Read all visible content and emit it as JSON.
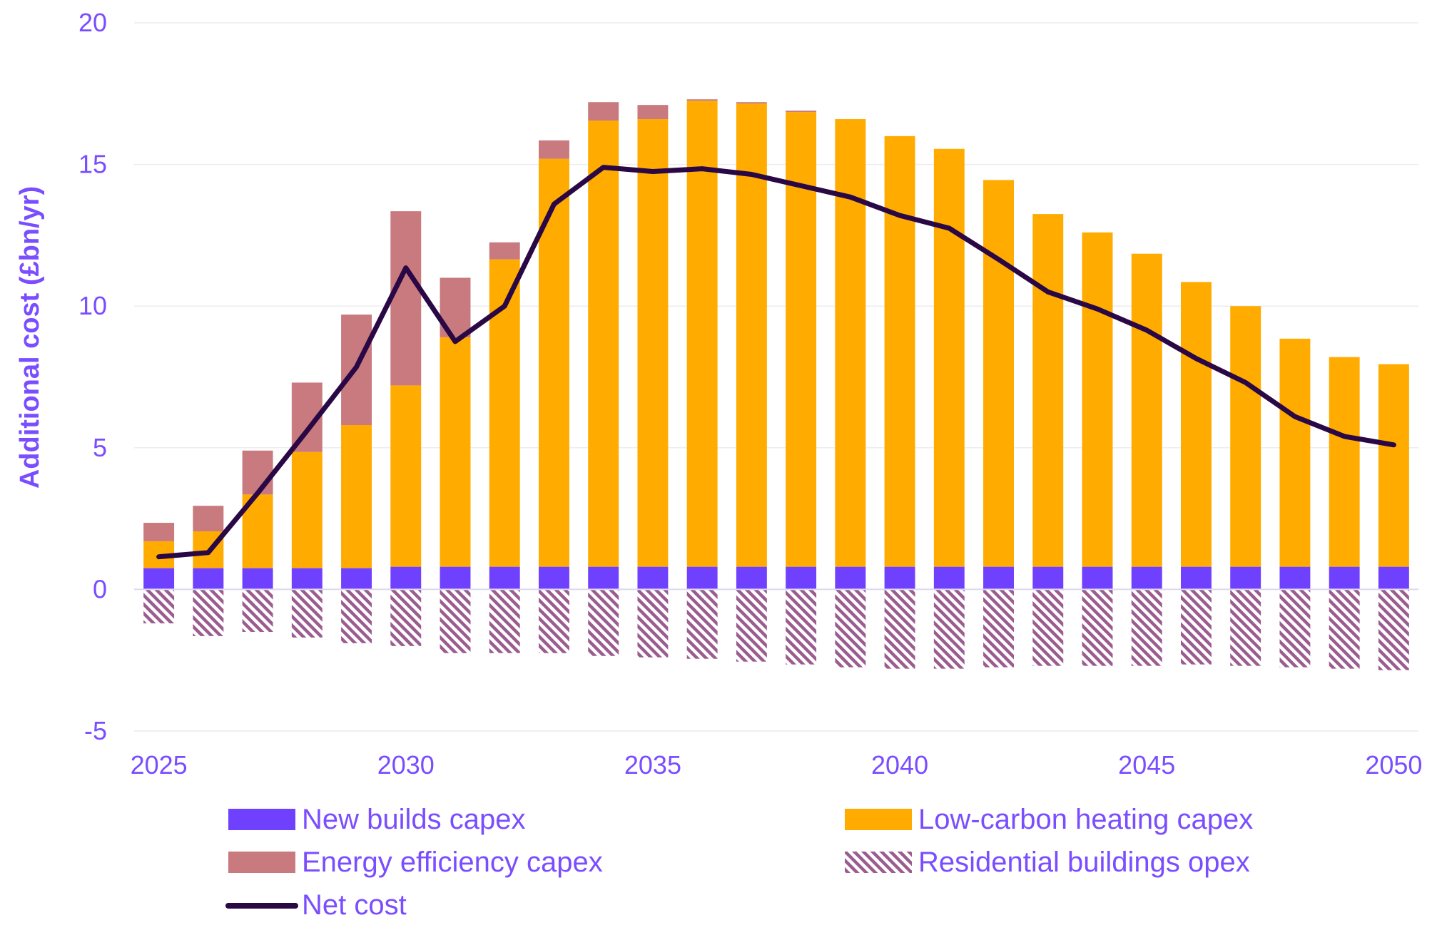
{
  "chart_data": {
    "type": "bar",
    "stacked": true,
    "ylabel": "Additional cost (£bn/yr)",
    "xlabel": "",
    "ylim": [
      -5,
      20
    ],
    "yticks": [
      20,
      15,
      10,
      5,
      0,
      -5
    ],
    "xtick_labels": [
      "2025",
      "2030",
      "2035",
      "2040",
      "2045",
      "2050"
    ],
    "grid": "horizontal",
    "legend_position": "bottom",
    "categories": [
      2025,
      2026,
      2027,
      2028,
      2029,
      2030,
      2031,
      2032,
      2033,
      2034,
      2035,
      2036,
      2037,
      2038,
      2039,
      2040,
      2041,
      2042,
      2043,
      2044,
      2045,
      2046,
      2047,
      2048,
      2049,
      2050
    ],
    "series": [
      {
        "name": "New builds capex",
        "kind": "bar",
        "color": "#7040ff",
        "values": [
          0.75,
          0.75,
          0.75,
          0.75,
          0.75,
          0.8,
          0.8,
          0.8,
          0.8,
          0.8,
          0.8,
          0.8,
          0.8,
          0.8,
          0.8,
          0.8,
          0.8,
          0.8,
          0.8,
          0.8,
          0.8,
          0.8,
          0.8,
          0.8,
          0.8,
          0.8
        ]
      },
      {
        "name": "Low-carbon heating capex",
        "kind": "bar",
        "color": "#ffab00",
        "values": [
          0.95,
          1.3,
          2.6,
          4.1,
          5.05,
          6.4,
          8.1,
          10.85,
          14.4,
          15.75,
          15.8,
          16.45,
          16.35,
          16.05,
          15.8,
          15.2,
          14.75,
          13.65,
          12.45,
          11.8,
          11.05,
          10.05,
          9.2,
          8.05,
          7.4,
          7.15
        ]
      },
      {
        "name": "Energy efficiency capex",
        "kind": "bar",
        "color": "#c87a7e",
        "values": [
          0.65,
          0.9,
          1.55,
          2.45,
          3.9,
          6.15,
          2.1,
          0.6,
          0.65,
          0.65,
          0.5,
          0.05,
          0.05,
          0.05,
          0.0,
          0.0,
          0.0,
          0.0,
          0.0,
          0.0,
          0.0,
          0.0,
          0.0,
          0.0,
          0.0,
          0.0
        ]
      },
      {
        "name": "Residential buildings opex",
        "kind": "bar",
        "color": "#9b5c8f",
        "pattern": "hatched",
        "values": [
          -1.2,
          -1.65,
          -1.5,
          -1.7,
          -1.9,
          -2.0,
          -2.25,
          -2.25,
          -2.25,
          -2.35,
          -2.4,
          -2.45,
          -2.55,
          -2.65,
          -2.75,
          -2.8,
          -2.8,
          -2.75,
          -2.7,
          -2.7,
          -2.7,
          -2.65,
          -2.7,
          -2.75,
          -2.8,
          -2.85
        ]
      },
      {
        "name": "Net cost",
        "kind": "line",
        "color": "#2a0845",
        "values": [
          1.15,
          1.3,
          3.4,
          5.6,
          7.85,
          11.35,
          8.75,
          10.0,
          13.6,
          14.9,
          14.75,
          14.85,
          14.65,
          14.25,
          13.85,
          13.2,
          12.75,
          11.65,
          10.5,
          9.9,
          9.15,
          8.15,
          7.3,
          6.1,
          5.4,
          5.1
        ]
      }
    ]
  }
}
